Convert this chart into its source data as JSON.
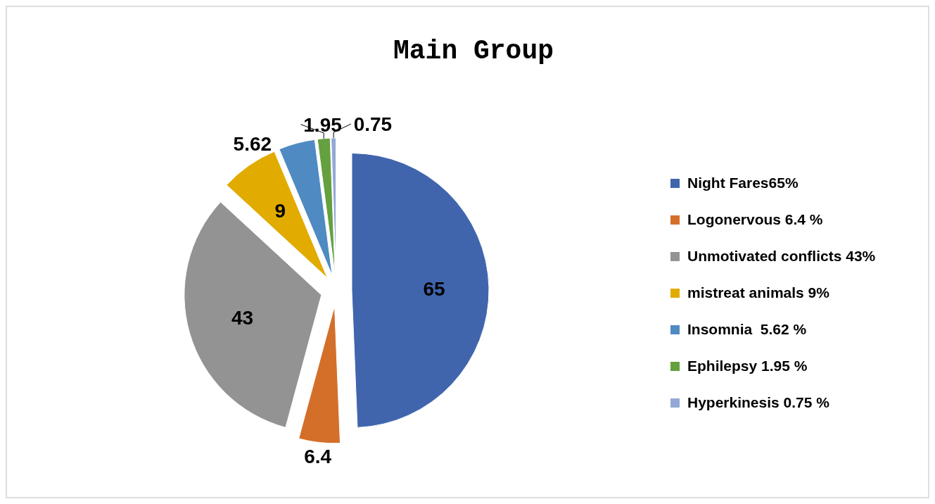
{
  "chart_data": {
    "type": "pie",
    "title": "Main Group",
    "categories": [
      "Night Fares65%",
      "Logonervous 6.4 %",
      "Unmotivated conflicts 43%",
      "mistreat animals 9%",
      "Insomnia  5.62 %",
      "Ephilepsy 1.95 %",
      "Hyperkinesis 0.75 %"
    ],
    "values": [
      65,
      6.4,
      43,
      9,
      5.62,
      1.95,
      0.75
    ],
    "colors": [
      "#4065ad",
      "#d46f2a",
      "#939393",
      "#e2ab00",
      "#4f8ac2",
      "#64a03f",
      "#94a8d8"
    ],
    "data_labels": true,
    "legend": "right"
  }
}
